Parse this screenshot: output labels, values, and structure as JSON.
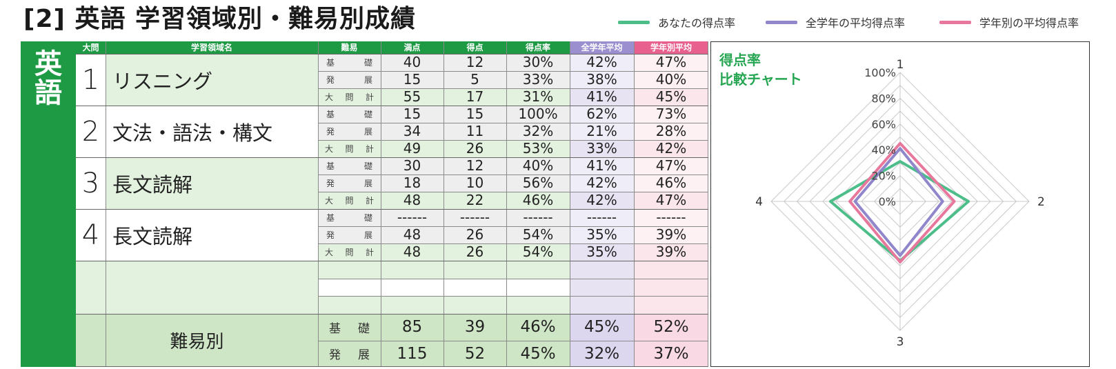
{
  "title": "[2] 英語 学習領域別・難易別成績",
  "legend": [
    {
      "label": "あなたの得点率",
      "color": "#4dbe8a"
    },
    {
      "label": "全学年の平均得点率",
      "color": "#8f86cc"
    },
    {
      "label": "学年別の平均得点率",
      "color": "#e8779c"
    }
  ],
  "subject": "英語",
  "headers": {
    "daimon": "大問",
    "area": "学習領域名",
    "difficulty": "難易",
    "full": "満点",
    "score": "得点",
    "rate": "得点率",
    "all_avg": "全学年平均",
    "grade_avg": "学年別平均"
  },
  "colors": {
    "header_green": "#1e9a45",
    "header_all_avg": "#9b8fd0",
    "header_grade_avg": "#e8608e",
    "cell_green": "#e3f1df",
    "cell_green_strong": "#cfe6c6",
    "cell_gray": "#eeeeee",
    "cell_purple": "#e7e3f3",
    "cell_pink": "#fbe6ec"
  },
  "groups": [
    {
      "num": "1",
      "name": "リスニング",
      "rows": [
        {
          "diff": [
            "基",
            "礎"
          ],
          "full": "40",
          "score": "12",
          "rate": "30%",
          "all": "42%",
          "grade": "47%"
        },
        {
          "diff": [
            "発",
            "展"
          ],
          "full": "15",
          "score": "5",
          "rate": "33%",
          "all": "38%",
          "grade": "40%"
        },
        {
          "diff": [
            "大",
            "問",
            "計"
          ],
          "full": "55",
          "score": "17",
          "rate": "31%",
          "all": "41%",
          "grade": "45%"
        }
      ]
    },
    {
      "num": "2",
      "name": "文法・語法・構文",
      "rows": [
        {
          "diff": [
            "基",
            "礎"
          ],
          "full": "15",
          "score": "15",
          "rate": "100%",
          "all": "62%",
          "grade": "73%"
        },
        {
          "diff": [
            "発",
            "展"
          ],
          "full": "34",
          "score": "11",
          "rate": "32%",
          "all": "21%",
          "grade": "28%"
        },
        {
          "diff": [
            "大",
            "問",
            "計"
          ],
          "full": "49",
          "score": "26",
          "rate": "53%",
          "all": "33%",
          "grade": "42%"
        }
      ]
    },
    {
      "num": "3",
      "name": "長文読解",
      "rows": [
        {
          "diff": [
            "基",
            "礎"
          ],
          "full": "30",
          "score": "12",
          "rate": "40%",
          "all": "41%",
          "grade": "47%"
        },
        {
          "diff": [
            "発",
            "展"
          ],
          "full": "18",
          "score": "10",
          "rate": "56%",
          "all": "42%",
          "grade": "46%"
        },
        {
          "diff": [
            "大",
            "問",
            "計"
          ],
          "full": "48",
          "score": "22",
          "rate": "46%",
          "all": "42%",
          "grade": "47%"
        }
      ]
    },
    {
      "num": "4",
      "name": "長文読解",
      "rows": [
        {
          "diff": [
            "基",
            "礎"
          ],
          "full": "------",
          "score": "------",
          "rate": "------",
          "all": "------",
          "grade": "------"
        },
        {
          "diff": [
            "発",
            "展"
          ],
          "full": "48",
          "score": "26",
          "rate": "54%",
          "all": "35%",
          "grade": "39%"
        },
        {
          "diff": [
            "大",
            "問",
            "計"
          ],
          "full": "48",
          "score": "26",
          "rate": "54%",
          "all": "35%",
          "grade": "39%"
        }
      ]
    }
  ],
  "summary": {
    "label": "難易別",
    "rows": [
      {
        "diff": [
          "基",
          "礎"
        ],
        "full": "85",
        "score": "39",
        "rate": "46%",
        "all": "45%",
        "grade": "52%"
      },
      {
        "diff": [
          "発",
          "展"
        ],
        "full": "115",
        "score": "52",
        "rate": "45%",
        "all": "32%",
        "grade": "37%"
      }
    ]
  },
  "chart_data": {
    "type": "radar",
    "title": [
      "得点率",
      "比較チャート"
    ],
    "axes": [
      "1",
      "2",
      "3",
      "4"
    ],
    "rlim": [
      0,
      100
    ],
    "ticks": [
      "0%",
      "20%",
      "40%",
      "60%",
      "80%",
      "100%"
    ],
    "grid": true,
    "series": [
      {
        "name": "あなたの得点率",
        "values": [
          31,
          53,
          46,
          54
        ],
        "color": "#4dbe8a"
      },
      {
        "name": "全学年の平均得点率",
        "values": [
          41,
          33,
          42,
          35
        ],
        "color": "#8f86cc"
      },
      {
        "name": "学年別の平均得点率",
        "values": [
          45,
          42,
          47,
          39
        ],
        "color": "#e8779c"
      }
    ]
  }
}
